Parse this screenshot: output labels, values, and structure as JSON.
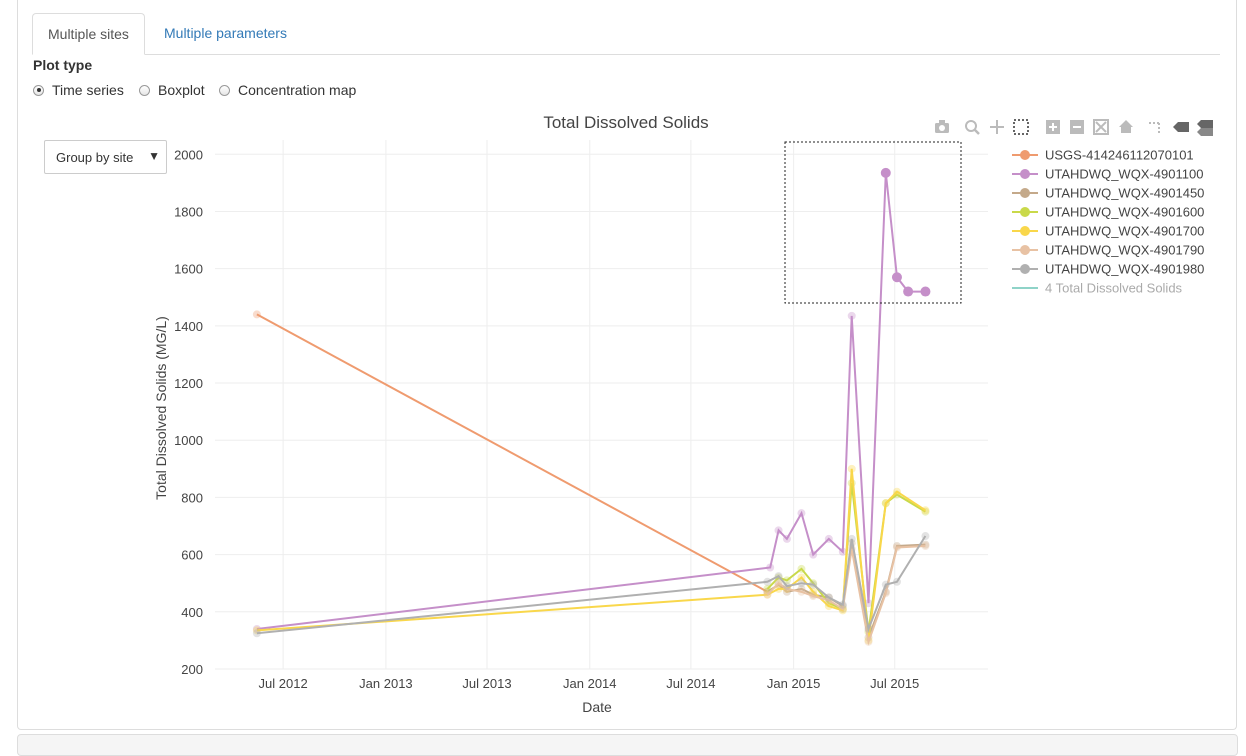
{
  "tabs": [
    {
      "label": "Multiple sites",
      "active": true
    },
    {
      "label": "Multiple parameters",
      "active": false
    }
  ],
  "plot_type": {
    "label": "Plot type",
    "options": [
      {
        "label": "Time series",
        "selected": true
      },
      {
        "label": "Boxplot",
        "selected": false
      },
      {
        "label": "Concentration map",
        "selected": false
      }
    ]
  },
  "group_select": {
    "value": "Group by site"
  },
  "toolbar_icons": [
    "camera-icon",
    "zoom-icon",
    "pan-icon",
    "box-select-icon",
    "zoom-in-icon",
    "zoom-out-icon",
    "autoscale-icon",
    "reset-axes-icon",
    "spike-lines-icon",
    "hover-closest-icon",
    "hover-compare-icon"
  ],
  "chart_data": {
    "type": "line",
    "title": "Total Dissolved Solids",
    "xlabel": "Date",
    "ylabel": "Total Dissolved Solids (MG/L)",
    "xlim": [
      "2012-03-01",
      "2015-12-15"
    ],
    "ylim": [
      200,
      2050
    ],
    "y_ticks": [
      200,
      400,
      600,
      800,
      1000,
      1200,
      1400,
      1600,
      1800,
      2000
    ],
    "x_ticks": [
      {
        "date": "2012-07-01",
        "label": "Jul 2012"
      },
      {
        "date": "2013-01-01",
        "label": "Jan 2013"
      },
      {
        "date": "2013-07-01",
        "label": "Jul 2013"
      },
      {
        "date": "2014-01-01",
        "label": "Jan 2014"
      },
      {
        "date": "2014-07-01",
        "label": "Jul 2014"
      },
      {
        "date": "2015-01-01",
        "label": "Jan 2015"
      },
      {
        "date": "2015-07-01",
        "label": "Jul 2015"
      }
    ],
    "grid": true,
    "legend_position": "right",
    "series": [
      {
        "name": "USGS-414246112070101",
        "color": "#ef9b6f",
        "x": [
          "2012-05-15",
          "2014-11-15"
        ],
        "y": [
          1440,
          470
        ]
      },
      {
        "name": "UTAHDWQ_WQX-4901100",
        "color": "#c58fc9",
        "x": [
          "2012-05-15",
          "2014-11-20",
          "2014-12-05",
          "2014-12-20",
          "2015-01-15",
          "2015-02-05",
          "2015-03-05",
          "2015-03-30",
          "2015-04-15",
          "2015-05-15",
          "2015-06-15",
          "2015-07-05",
          "2015-07-25",
          "2015-08-25"
        ],
        "y": [
          340,
          555,
          685,
          655,
          745,
          600,
          655,
          610,
          1435,
          430,
          1935,
          1570,
          1520,
          1520
        ]
      },
      {
        "name": "UTAHDWQ_WQX-4901450",
        "color": "#c4a98a",
        "x": [
          "2014-11-15",
          "2014-12-05",
          "2014-12-20",
          "2015-01-15",
          "2015-02-05",
          "2015-03-05",
          "2015-03-30",
          "2015-04-15",
          "2015-05-15",
          "2015-06-15",
          "2015-07-05",
          "2015-08-25"
        ],
        "y": [
          470,
          495,
          470,
          480,
          460,
          450,
          420,
          640,
          310,
          470,
          630,
          635
        ]
      },
      {
        "name": "UTAHDWQ_WQX-4901600",
        "color": "#c9d94a",
        "x": [
          "2014-11-15",
          "2014-12-05",
          "2014-12-20",
          "2015-01-15",
          "2015-02-05",
          "2015-03-05",
          "2015-03-30",
          "2015-04-15",
          "2015-05-15",
          "2015-06-15",
          "2015-07-05",
          "2015-08-25"
        ],
        "y": [
          480,
          520,
          510,
          550,
          500,
          430,
          410,
          850,
          330,
          780,
          810,
          750
        ]
      },
      {
        "name": "UTAHDWQ_WQX-4901700",
        "color": "#f9d74b",
        "x": [
          "2012-05-15",
          "2014-11-15",
          "2014-12-05",
          "2014-12-20",
          "2015-01-15",
          "2015-02-05",
          "2015-03-05",
          "2015-03-30",
          "2015-04-15",
          "2015-05-15",
          "2015-06-15",
          "2015-07-05",
          "2015-08-25"
        ],
        "y": [
          335,
          460,
          480,
          480,
          520,
          470,
          420,
          405,
          900,
          300,
          780,
          820,
          755
        ]
      },
      {
        "name": "UTAHDWQ_WQX-4901790",
        "color": "#e8c2a4",
        "x": [
          "2014-11-15",
          "2014-12-05",
          "2014-12-20",
          "2015-01-15",
          "2015-02-05",
          "2015-03-05",
          "2015-03-30",
          "2015-04-15",
          "2015-05-15",
          "2015-06-15",
          "2015-07-05",
          "2015-08-25"
        ],
        "y": [
          460,
          500,
          480,
          470,
          455,
          440,
          410,
          620,
          295,
          465,
          625,
          630
        ]
      },
      {
        "name": "UTAHDWQ_WQX-4901980",
        "color": "#b0b0b0",
        "x": [
          "2012-05-15",
          "2014-11-15",
          "2014-12-05",
          "2014-12-20",
          "2015-01-15",
          "2015-02-05",
          "2015-03-05",
          "2015-03-30",
          "2015-04-15",
          "2015-05-15",
          "2015-06-15",
          "2015-07-05",
          "2015-08-25"
        ],
        "y": [
          325,
          505,
          525,
          490,
          500,
          495,
          450,
          425,
          655,
          340,
          495,
          505,
          665
        ]
      }
    ],
    "extra_legend": {
      "name": "4 Total Dissolved Solids",
      "color": "#8fd3c8"
    }
  }
}
